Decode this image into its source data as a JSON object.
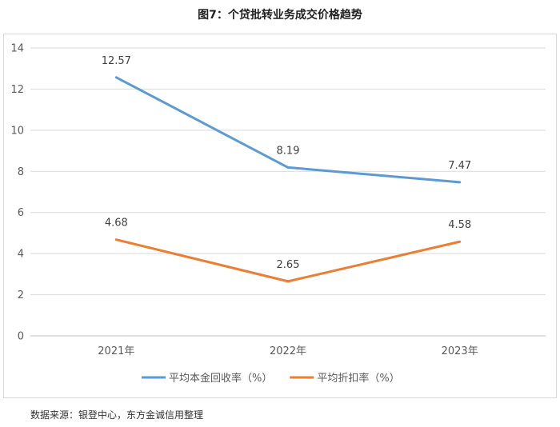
{
  "title": "图7：个贷批转业务成交价格趋势",
  "source": "数据来源：银登中心，东方金诚信用整理",
  "chart_data": {
    "type": "line",
    "title": "图7：个贷批转业务成交价格趋势",
    "xlabel": "",
    "ylabel": "",
    "categories": [
      "2021年",
      "2022年",
      "2023年"
    ],
    "ylim": [
      0,
      14
    ],
    "yticks": [
      0,
      2,
      4,
      6,
      8,
      10,
      12,
      14
    ],
    "grid": "horizontal",
    "legend": "bottom",
    "series": [
      {
        "name": "平均本金回收率（%）",
        "color": "#5b9bd5",
        "values": [
          12.57,
          8.19,
          7.47
        ],
        "labels": [
          "12.57",
          "8.19",
          "7.47"
        ]
      },
      {
        "name": "平均折扣率（%）",
        "color": "#ed7d31",
        "values": [
          4.68,
          2.65,
          4.58
        ],
        "labels": [
          "4.68",
          "2.65",
          "4.58"
        ]
      }
    ]
  }
}
